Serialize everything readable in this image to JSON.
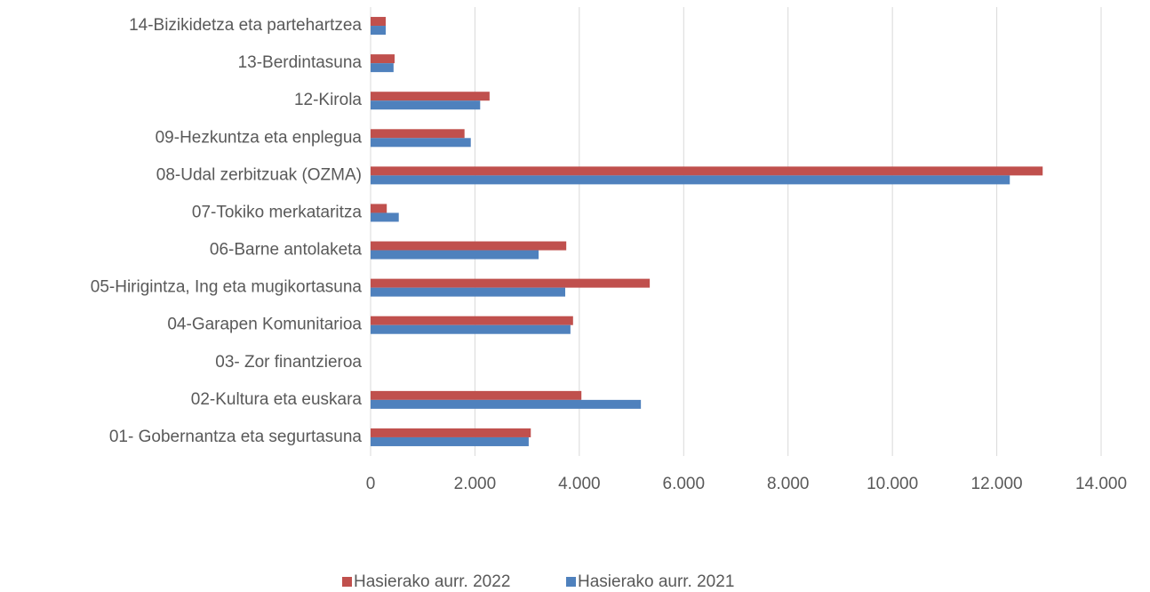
{
  "chart_data": {
    "type": "hbar",
    "categories": [
      "14-Bizikidetza eta partehartzea",
      "13-Berdintasuna",
      "12-Kirola",
      "09-Hezkuntza eta enplegua",
      "08-Udal zerbitzuak (OZMA)",
      "07-Tokiko merkataritza",
      "06-Barne antolaketa",
      "05-Hirigintza, Ing eta mugikortasuna",
      "04-Garapen Komunitarioa",
      "03- Zor finantzieroa",
      "02-Kultura eta euskara",
      "01- Gobernantza eta segurtasuna"
    ],
    "series": [
      {
        "name": "Hasierako aurr. 2022",
        "color": "#c0504d",
        "values": [
          290,
          460,
          2280,
          1800,
          12880,
          310,
          3750,
          5350,
          3880,
          0,
          4040,
          3070
        ]
      },
      {
        "name": "Hasierako aurr. 2021",
        "color": "#4f81bd",
        "values": [
          290,
          440,
          2100,
          1920,
          12250,
          540,
          3220,
          3730,
          3830,
          0,
          5180,
          3030
        ]
      }
    ],
    "xlim": [
      0,
      14000
    ],
    "xticks": [
      0,
      {
        "value": 2000,
        "label": "2.000"
      },
      {
        "value": 4000,
        "label": "4.000"
      },
      {
        "value": 6000,
        "label": "6.000"
      },
      {
        "value": 8000,
        "label": "8.000"
      },
      {
        "value": 10000,
        "label": "10.000"
      },
      {
        "value": 12000,
        "label": "12.000"
      },
      {
        "value": 14000,
        "label": "14.000"
      }
    ],
    "grid": true,
    "legend": "bottom"
  }
}
